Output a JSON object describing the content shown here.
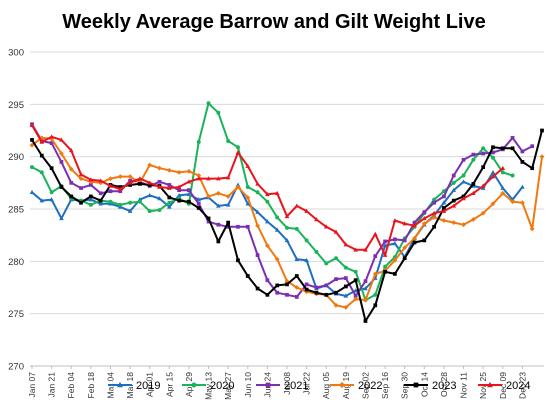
{
  "chart_data": {
    "type": "line",
    "title": "Weekly Average Barrow and Gilt Weight Live",
    "xlabel": "",
    "ylabel": "",
    "ylim": [
      270,
      300
    ],
    "yticks": [
      "270",
      "275",
      "280",
      "285",
      "290",
      "295",
      "300"
    ],
    "x_tick_labels": [
      "Jan 07",
      "Jan 21",
      "Feb 04",
      "Feb 18",
      "Mar 04",
      "Mar 18",
      "Apr 01",
      "Apr 15",
      "Apr 29",
      "May 13",
      "May 27",
      "Jun 10",
      "Jun 24",
      "Jul 08",
      "Jul 22",
      "Aug 05",
      "Aug 19",
      "Sep 02",
      "Sep 16",
      "Sep 30",
      "Oct 14",
      "Oct 28",
      "Nov 11",
      "Nov 25",
      "Dec 09",
      "Dec 23"
    ],
    "grid": "horizontal",
    "legend_position": "bottom",
    "series": [
      {
        "name": "2019",
        "color": "#1f6fc0",
        "marker": "triangle",
        "values": [
          286.6,
          285.8,
          285.9,
          284.1,
          285.9,
          285.8,
          285.9,
          285.5,
          285.5,
          285.2,
          284.8,
          285.9,
          286.3,
          286.0,
          285.2,
          286.3,
          286.4,
          285.9,
          286.1,
          285.3,
          285.4,
          287.3,
          285.5,
          284.7,
          283.8,
          283.0,
          282.0,
          280.2,
          280.1,
          277.4,
          277.7,
          276.9,
          276.7,
          277.2,
          277.4,
          278.4,
          281.5,
          281.7,
          280.4,
          282.2,
          283.5,
          284.4,
          285.6,
          286.8,
          287.6,
          287.2,
          287.0,
          288.5,
          287.0,
          285.9,
          287.1
        ]
      },
      {
        "name": "2020",
        "color": "#1bb35a",
        "marker": "circle",
        "values": [
          289.0,
          288.5,
          286.6,
          287.2,
          286.0,
          285.8,
          285.4,
          285.8,
          285.7,
          285.4,
          285.6,
          285.7,
          284.8,
          284.9,
          285.6,
          286.0,
          285.5,
          291.4,
          295.1,
          294.2,
          291.5,
          290.9,
          287.1,
          286.6,
          285.7,
          284.2,
          283.2,
          283.1,
          282.0,
          280.9,
          279.8,
          280.3,
          279.4,
          279.0,
          276.3,
          276.8,
          279.5,
          280.4,
          282.2,
          283.3,
          284.6,
          285.9,
          286.7,
          287.5,
          288.2,
          289.7,
          290.8,
          289.9,
          288.5,
          288.2
        ]
      },
      {
        "name": "2021",
        "color": "#7b2fb2",
        "marker": "square",
        "values": [
          293.1,
          291.5,
          291.3,
          289.5,
          287.5,
          287.0,
          287.3,
          286.5,
          286.7,
          286.7,
          287.7,
          287.6,
          287.2,
          287.6,
          287.3,
          286.8,
          286.8,
          285.5,
          283.8,
          283.5,
          283.3,
          283.3,
          283.3,
          280.6,
          278.2,
          277.0,
          276.8,
          276.6,
          277.8,
          277.5,
          277.7,
          278.3,
          278.4,
          276.7,
          278.1,
          280.5,
          281.9,
          282.1,
          282.0,
          283.7,
          284.7,
          285.6,
          286.2,
          288.2,
          289.7,
          290.2,
          290.3,
          290.4,
          290.7,
          291.8,
          290.5,
          291.0
        ]
      },
      {
        "name": "2022",
        "color": "#f07a10",
        "marker": "diamond",
        "values": [
          291.1,
          291.8,
          291.7,
          290.3,
          288.8,
          287.9,
          287.6,
          287.5,
          287.9,
          288.1,
          288.1,
          287.5,
          289.2,
          288.9,
          288.7,
          288.5,
          288.6,
          288.2,
          286.2,
          286.5,
          286.2,
          287.1,
          286.1,
          283.4,
          281.5,
          280.2,
          278.1,
          277.5,
          277.1,
          276.9,
          276.8,
          275.8,
          275.6,
          276.4,
          276.3,
          278.8,
          279.1,
          280.1,
          281.3,
          282.2,
          283.6,
          284.2,
          283.9,
          283.7,
          283.5,
          284.0,
          284.6,
          285.5,
          286.5,
          285.7,
          285.6,
          283.1,
          290.0
        ]
      },
      {
        "name": "2023",
        "color": "#000000",
        "marker": "square",
        "values": [
          291.6,
          290.1,
          288.9,
          287.1,
          286.2,
          285.6,
          286.2,
          285.8,
          287.3,
          287.1,
          287.3,
          287.4,
          287.3,
          287.2,
          286.1,
          285.8,
          285.7,
          285.1,
          284.1,
          281.9,
          283.7,
          280.1,
          278.6,
          277.4,
          276.8,
          277.7,
          277.8,
          278.6,
          277.3,
          277.0,
          276.8,
          277.0,
          277.6,
          278.2,
          274.3,
          275.8,
          279.0,
          278.8,
          280.3,
          281.8,
          282.0,
          283.3,
          285.1,
          285.8,
          286.2,
          287.4,
          289.0,
          290.9,
          290.8,
          290.8,
          289.5,
          288.9,
          292.5
        ]
      },
      {
        "name": "2024",
        "color": "#e8151c",
        "marker": "triangle",
        "values": [
          293.0,
          291.4,
          291.9,
          291.6,
          290.6,
          288.3,
          287.8,
          287.7,
          287.2,
          286.9,
          287.5,
          287.9,
          287.5,
          287.1,
          287.0,
          287.1,
          287.6,
          287.9,
          287.9,
          287.9,
          288.0,
          290.4,
          289.1,
          287.4,
          286.4,
          286.5,
          284.3,
          285.3,
          284.8,
          284.0,
          283.3,
          282.8,
          281.6,
          281.1,
          281.1,
          282.6,
          280.6,
          283.9,
          283.6,
          283.4,
          284.1,
          284.6,
          284.8,
          285.3,
          286.0,
          286.5,
          287.2,
          288.1,
          288.9
        ]
      }
    ]
  }
}
